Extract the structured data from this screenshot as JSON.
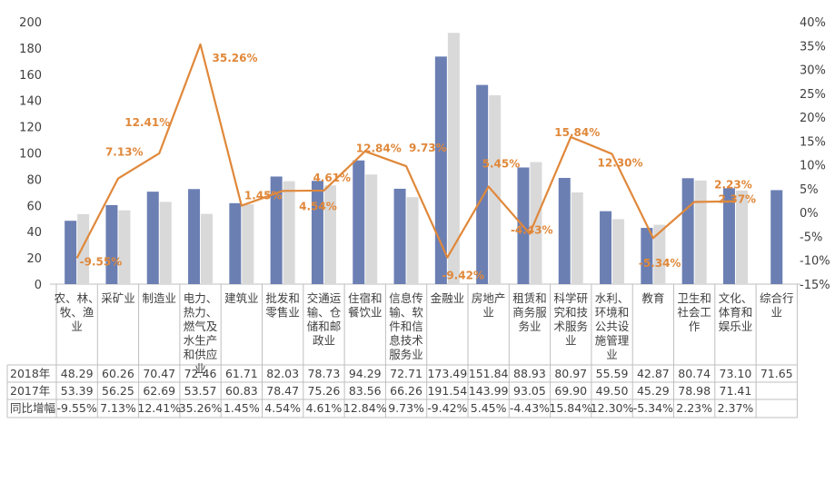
{
  "chart_data": {
    "type": "bar",
    "categories": [
      "农、林、牧、渔业",
      "采矿业",
      "制造业",
      "电力、热力、燃气及水生产和供应业",
      "建筑业",
      "批发和零售业",
      "交通运输、仓储和邮政业",
      "住宿和餐饮业",
      "信息传输、软件和信息技术服务业",
      "金融业",
      "房地产业",
      "租赁和商务服务业",
      "科学研究和技术服务业",
      "水利、环境和公共设施管理业",
      "教育",
      "卫生和社会工作",
      "文化、体育和娱乐业",
      "综合行业"
    ],
    "category_lines": [
      [
        "农、林、",
        "牧、渔",
        "业"
      ],
      [
        "采矿业"
      ],
      [
        "制造业"
      ],
      [
        "电力、",
        "热力、",
        "燃气及",
        "水生产",
        "和供应",
        "业"
      ],
      [
        "建筑业"
      ],
      [
        "批发和",
        "零售业"
      ],
      [
        "交通运",
        "输、仓",
        "储和邮",
        "政业"
      ],
      [
        "住宿和",
        "餐饮业"
      ],
      [
        "信息传",
        "输、软",
        "件和信",
        "息技术",
        "服务业"
      ],
      [
        "金融业"
      ],
      [
        "房地产",
        "业"
      ],
      [
        "租赁和",
        "商务服",
        "务业"
      ],
      [
        "科学研",
        "究和技",
        "术服务",
        "业"
      ],
      [
        "水利、",
        "环境和",
        "公共设",
        "施管理",
        "业"
      ],
      [
        "教育"
      ],
      [
        "卫生和",
        "社会工",
        "作"
      ],
      [
        "文化、",
        "体育和",
        "娱乐业"
      ],
      [
        "综合行",
        "业"
      ]
    ],
    "series": [
      {
        "name": "2018年",
        "kind": "bar",
        "axis": "left",
        "color": "#6b7fb3",
        "values": [
          48.29,
          60.26,
          70.47,
          72.46,
          61.71,
          82.03,
          78.73,
          94.29,
          72.71,
          173.49,
          151.84,
          88.93,
          80.97,
          55.59,
          42.87,
          80.74,
          73.1,
          71.65
        ],
        "labels": [
          "48.29",
          "60.26",
          "70.47",
          "72.46",
          "61.71",
          "82.03",
          "78.73",
          "94.29",
          "72.71",
          "173.49",
          "151.84",
          "88.93",
          "80.97",
          "55.59",
          "42.87",
          "80.74",
          "73.10",
          "71.65"
        ]
      },
      {
        "name": "2017年",
        "kind": "bar",
        "axis": "left",
        "color": "#d9d9d9",
        "values": [
          53.39,
          56.25,
          62.69,
          53.57,
          60.83,
          78.47,
          75.26,
          83.56,
          66.26,
          191.54,
          143.99,
          93.05,
          69.9,
          49.5,
          45.29,
          78.98,
          71.41,
          null
        ],
        "labels": [
          "53.39",
          "56.25",
          "62.69",
          "53.57",
          "60.83",
          "78.47",
          "75.26",
          "83.56",
          "66.26",
          "191.54",
          "143.99",
          "93.05",
          "69.90",
          "49.50",
          "45.29",
          "78.98",
          "71.41",
          ""
        ]
      },
      {
        "name": "同比增幅",
        "kind": "line",
        "axis": "right",
        "color": "#e0883a",
        "values": [
          -9.55,
          7.13,
          12.41,
          35.26,
          1.45,
          4.54,
          4.61,
          12.84,
          9.73,
          -9.42,
          5.45,
          -4.43,
          15.84,
          12.3,
          -5.34,
          2.23,
          2.37,
          null
        ],
        "labels": [
          "-9.55%",
          "7.13%",
          "12.41%",
          "35.26%",
          "1.45%",
          "4.54%",
          "4.61%",
          "12.84%",
          "9.73%",
          "-9.42%",
          "5.45%",
          "-4.43%",
          "15.84%",
          "12.30%",
          "-5.34%",
          "2.23%",
          "2.37%",
          ""
        ]
      }
    ],
    "left_axis": {
      "min": 0,
      "max": 200,
      "step": 20,
      "ticks": [
        "0",
        "20",
        "40",
        "60",
        "80",
        "100",
        "120",
        "140",
        "160",
        "180",
        "200"
      ]
    },
    "right_axis": {
      "min": -15,
      "max": 40,
      "step": 5,
      "ticks": [
        "-15%",
        "-10%",
        "-5%",
        "0%",
        "5%",
        "10%",
        "15%",
        "20%",
        "25%",
        "30%",
        "35%",
        "40%"
      ]
    },
    "grid": false,
    "legend": "data table below chart",
    "colors": {
      "bar2018": "#6b7fb3",
      "bar2017": "#d9d9d9",
      "line": "#e0883a",
      "label": "#e0883a",
      "text": "#404040",
      "axis": "#bfbfbf"
    }
  }
}
